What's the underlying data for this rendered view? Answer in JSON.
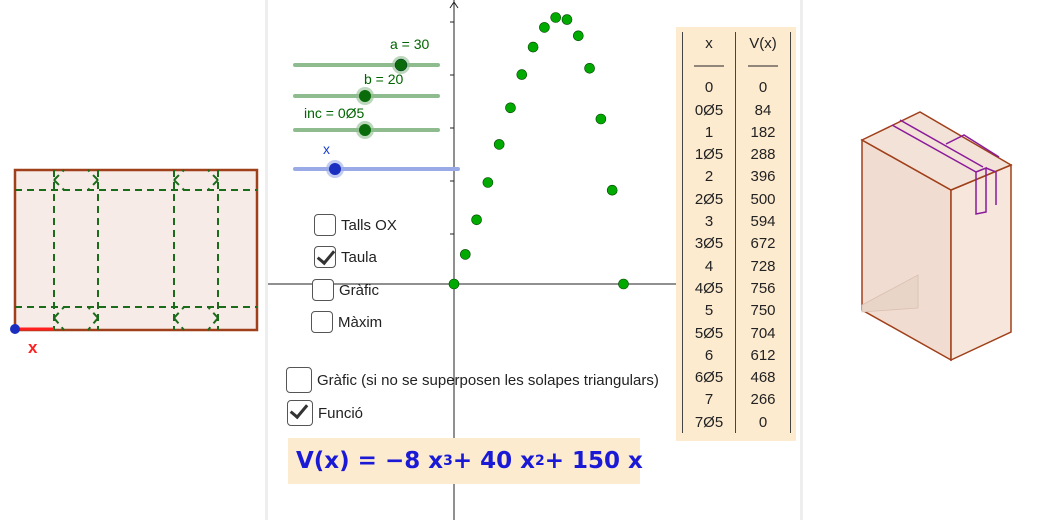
{
  "net": {
    "x_label": "x"
  },
  "sliders": [
    {
      "id": "a",
      "label": "a = 30"
    },
    {
      "id": "b",
      "label": "b = 20"
    },
    {
      "id": "inc",
      "label": "inc = 0Ø5"
    },
    {
      "id": "x",
      "label": "x"
    }
  ],
  "checkboxes": [
    {
      "label": "Talls OX",
      "checked": false
    },
    {
      "label": "Taula",
      "checked": true
    },
    {
      "label": "Gràfic",
      "checked": false
    },
    {
      "label": "Màxim",
      "checked": false
    },
    {
      "label": "Gràfic (si no se superposen les solapes triangulars)",
      "checked": false
    },
    {
      "label": "Funció",
      "checked": true
    }
  ],
  "table": {
    "headers": [
      "x",
      "V(x)"
    ],
    "separator": [
      "——",
      "——"
    ],
    "rows": [
      [
        "0",
        "0"
      ],
      [
        "0Ø5",
        "84"
      ],
      [
        "1",
        "182"
      ],
      [
        "1Ø5",
        "288"
      ],
      [
        "2",
        "396"
      ],
      [
        "2Ø5",
        "500"
      ],
      [
        "3",
        "594"
      ],
      [
        "3Ø5",
        "672"
      ],
      [
        "4",
        "728"
      ],
      [
        "4Ø5",
        "756"
      ],
      [
        "5",
        "750"
      ],
      [
        "5Ø5",
        "704"
      ],
      [
        "6",
        "612"
      ],
      [
        "6Ø5",
        "468"
      ],
      [
        "7",
        "266"
      ],
      [
        "7Ø5",
        "0"
      ]
    ]
  },
  "formula": {
    "lhs": "V(x) = −8 x",
    "exp1": "3",
    "mid": " + 40 x",
    "exp2": "2",
    "rhs": " + 150 x"
  },
  "colors": {
    "slider_green": "#8fbc8f",
    "slider_blue": "#9aaae6",
    "point_green": "#00aa00",
    "panel_bg": "#fdebd0",
    "net_border": "#a0401a"
  },
  "chart_data": {
    "type": "scatter",
    "x": [
      0,
      0.5,
      1,
      1.5,
      2,
      2.5,
      3,
      3.5,
      4,
      4.5,
      5,
      5.5,
      6,
      6.5,
      7,
      7.5
    ],
    "values": [
      0,
      84,
      182,
      288,
      396,
      500,
      594,
      672,
      728,
      756,
      750,
      704,
      612,
      468,
      266,
      0
    ],
    "xlim": [
      0,
      7.5
    ],
    "ylim": [
      0,
      800
    ],
    "grid": false
  }
}
